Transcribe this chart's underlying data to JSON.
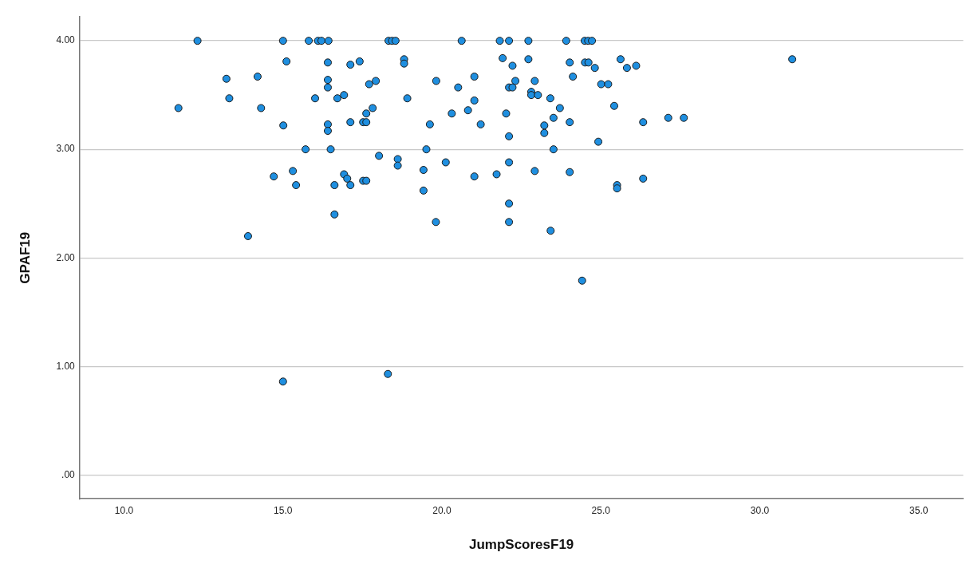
{
  "chart_data": {
    "type": "scatter",
    "xlabel": "JumpScoresF19",
    "ylabel": "GPAF19",
    "xlim": [
      8.6,
      36.4
    ],
    "ylim": [
      -0.22,
      4.22
    ],
    "xticks": [
      {
        "value": 10,
        "label": "10.0"
      },
      {
        "value": 15,
        "label": "15.0"
      },
      {
        "value": 20,
        "label": "20.0"
      },
      {
        "value": 25,
        "label": "25.0"
      },
      {
        "value": 30,
        "label": "30.0"
      },
      {
        "value": 35,
        "label": "35.0"
      }
    ],
    "yticks": [
      {
        "value": 0,
        "label": ".00"
      },
      {
        "value": 1,
        "label": "1.00"
      },
      {
        "value": 2,
        "label": "2.00"
      },
      {
        "value": 3,
        "label": "3.00"
      },
      {
        "value": 4,
        "label": "4.00"
      }
    ],
    "grid": "y",
    "marker": "circle",
    "series": [
      {
        "color": "#1f8fe0",
        "x": [
          12.31,
          15.0,
          15.81,
          15.11,
          13.22,
          14.2,
          13.31,
          11.71,
          14.31,
          15.01,
          15.71,
          15.31,
          14.71,
          15.41,
          16.01,
          13.9,
          16.62,
          19.81,
          22.11,
          23.42,
          24.41,
          15.0,
          18.3,
          16.1,
          16.21,
          16.43,
          18.32,
          18.43,
          18.54,
          20.62,
          21.82,
          22.11,
          22.72,
          16.41,
          17.12,
          17.41,
          18.81,
          18.81,
          16.41,
          16.41,
          16.71,
          16.92,
          17.71,
          17.92,
          18.91,
          19.82,
          20.51,
          21.02,
          21.02,
          20.31,
          20.82,
          21.22,
          21.91,
          22.22,
          22.72,
          22.31,
          22.11,
          22.22,
          22.92,
          22.81,
          22.81,
          23.02,
          22.02,
          16.41,
          16.41,
          17.12,
          17.52,
          17.62,
          17.62,
          17.82,
          19.62,
          23.22,
          23.22,
          22.11,
          16.5,
          19.51,
          18.02,
          18.61,
          18.61,
          20.12,
          22.11,
          19.42,
          21.02,
          21.72,
          22.92,
          16.92,
          17.02,
          16.62,
          17.12,
          17.52,
          17.62,
          19.42,
          22.11,
          23.91,
          24.49,
          24.6,
          24.72,
          24.02,
          24.12,
          24.5,
          24.61,
          24.81,
          25.62,
          25.82,
          26.11,
          25.01,
          25.23,
          25.42,
          23.41,
          23.71,
          23.51,
          24.02,
          26.33,
          27.12,
          27.61,
          24.92,
          23.51,
          24.02,
          25.51,
          25.51,
          26.33,
          31.02
        ],
        "values": [
          4.0,
          4.0,
          4.0,
          3.81,
          3.65,
          3.67,
          3.47,
          3.38,
          3.38,
          3.22,
          3.0,
          2.8,
          2.75,
          2.67,
          3.47,
          2.2,
          2.4,
          2.33,
          2.33,
          2.25,
          1.79,
          0.86,
          0.93,
          4.0,
          4.0,
          4.0,
          4.0,
          4.0,
          4.0,
          4.0,
          4.0,
          4.0,
          4.0,
          3.8,
          3.78,
          3.81,
          3.83,
          3.79,
          3.64,
          3.57,
          3.47,
          3.5,
          3.6,
          3.63,
          3.47,
          3.63,
          3.57,
          3.67,
          3.45,
          3.33,
          3.36,
          3.23,
          3.84,
          3.77,
          3.83,
          3.63,
          3.57,
          3.57,
          3.63,
          3.53,
          3.5,
          3.5,
          3.33,
          3.23,
          3.17,
          3.25,
          3.25,
          3.25,
          3.33,
          3.38,
          3.23,
          3.22,
          3.15,
          3.12,
          3.0,
          3.0,
          2.94,
          2.91,
          2.85,
          2.88,
          2.88,
          2.81,
          2.75,
          2.77,
          2.8,
          2.77,
          2.73,
          2.67,
          2.67,
          2.71,
          2.71,
          2.62,
          2.5,
          4.0,
          4.0,
          4.0,
          4.0,
          3.8,
          3.67,
          3.8,
          3.8,
          3.75,
          3.83,
          3.75,
          3.77,
          3.6,
          3.6,
          3.4,
          3.47,
          3.38,
          3.29,
          3.25,
          3.25,
          3.29,
          3.29,
          3.07,
          3.0,
          2.79,
          2.67,
          2.64,
          2.73,
          3.83
        ]
      }
    ]
  }
}
